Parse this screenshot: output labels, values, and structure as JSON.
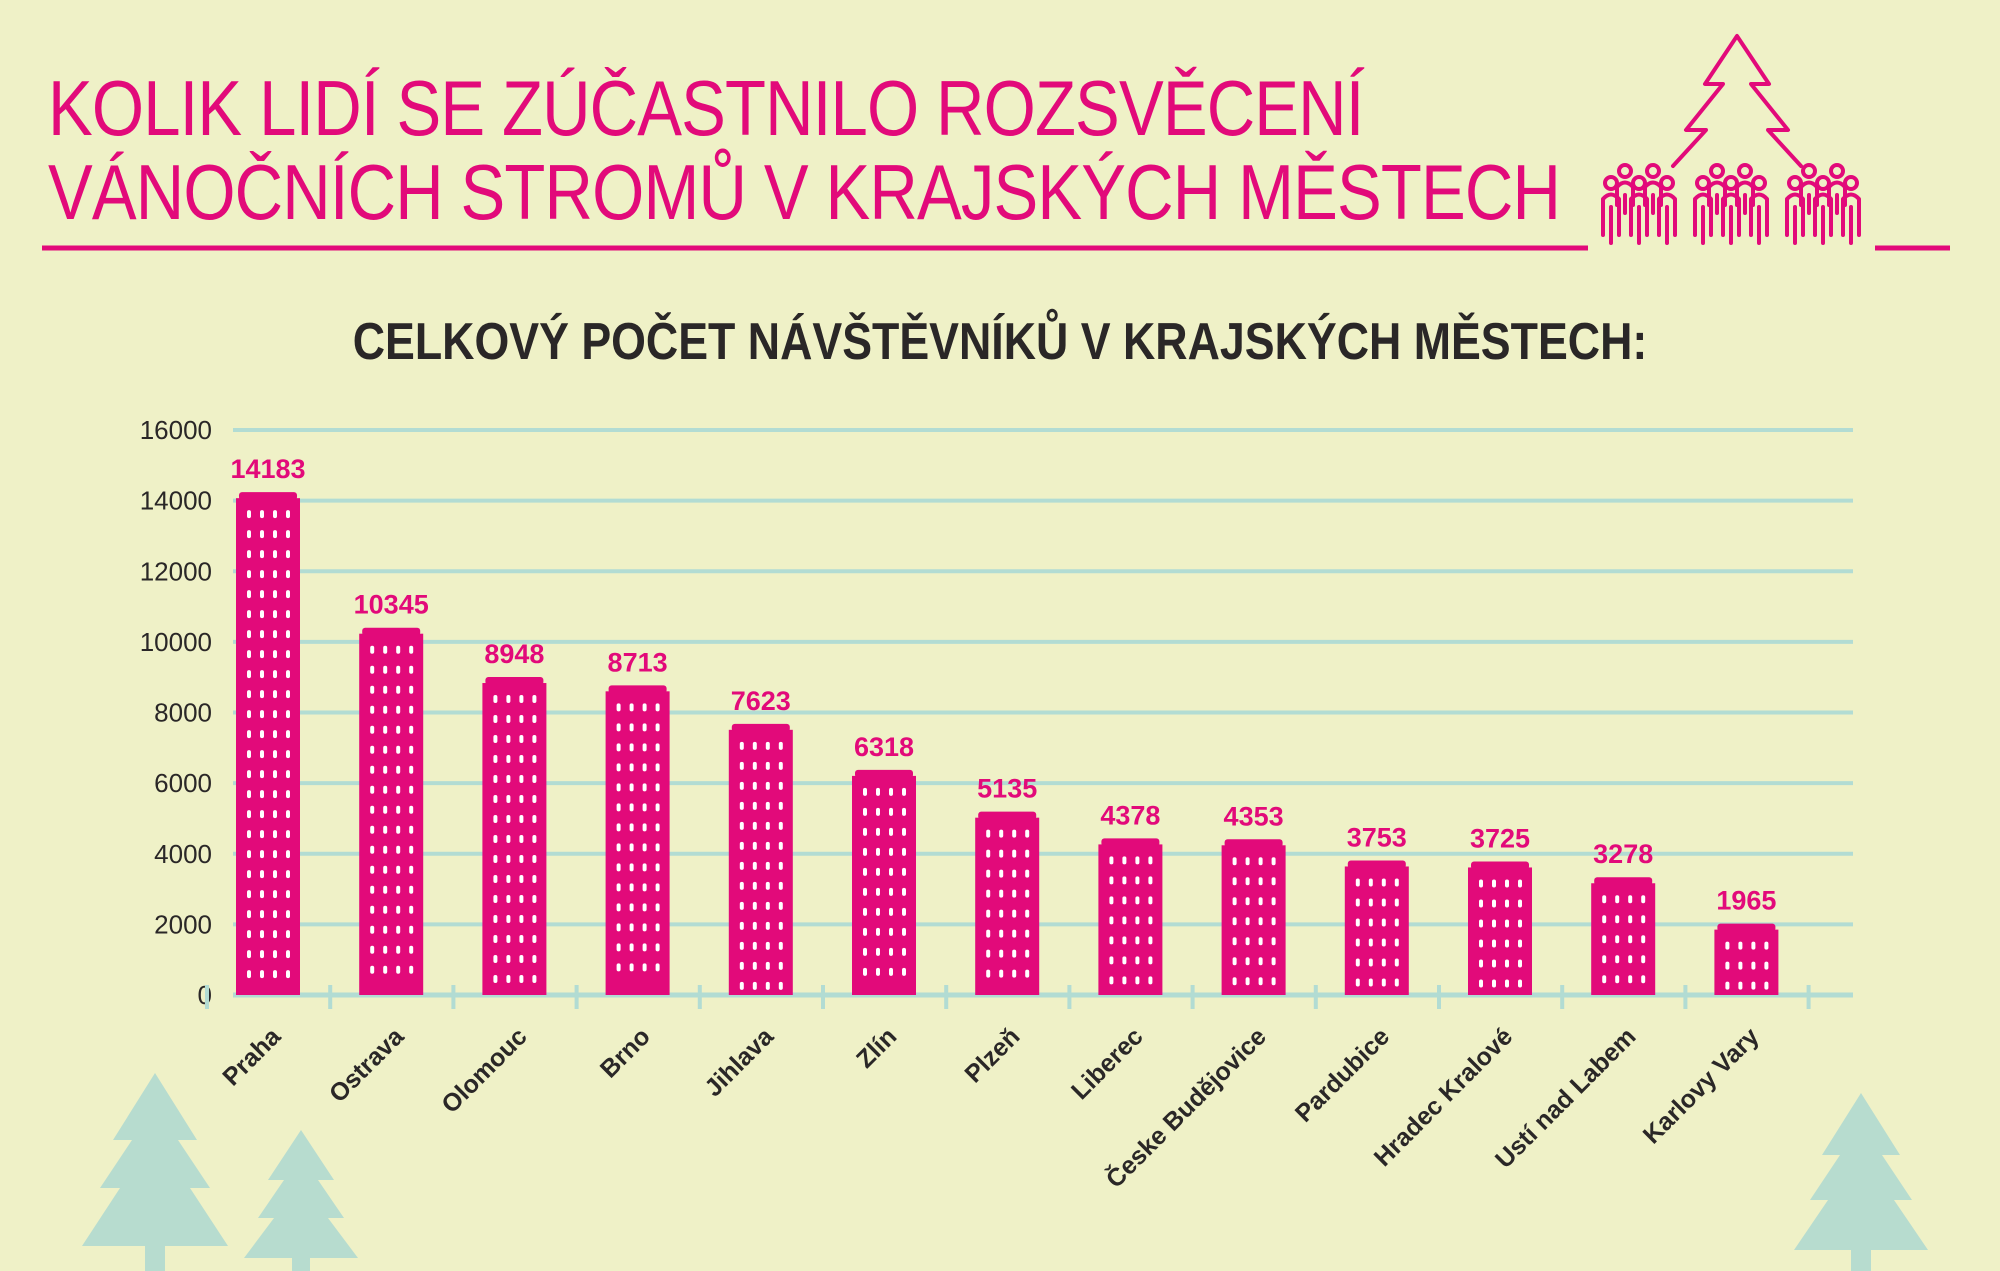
{
  "header": {
    "title_line1": "KOLIK LIDÍ SE ZÚČASTNILO ROZSVĚCENÍ",
    "title_line2": "VÁNOČNÍCH STROMŮ V KRAJSKÝCH MĚSTECH"
  },
  "colors": {
    "accent": "#e20a7a",
    "background": "#eff1c7",
    "grid": "#b2dcd3",
    "tree": "#b7dccf",
    "text": "#2a2727"
  },
  "chart_data": {
    "type": "bar",
    "title": "CELKOVÝ POČET NÁVŠTĚVNÍKŮ V KRAJSKÝCH MĚSTECH:",
    "categories": [
      "Praha",
      "Ostrava",
      "Olomouc",
      "Brno",
      "Jihlava",
      "Zlín",
      "Plzeň",
      "Liberec",
      "Česke Budějovice",
      "Pardubice",
      "Hradec Kralové",
      "Ustí nad Labem",
      "Karlovy Vary"
    ],
    "values": [
      14183,
      10345,
      8948,
      8713,
      7623,
      6318,
      5135,
      4378,
      4353,
      3753,
      3725,
      3278,
      1965
    ],
    "data_labels": [
      "14183",
      "10345",
      "8948",
      "8713",
      "7623",
      "6318",
      "5135",
      "4378",
      "4353",
      "3753",
      "3725",
      "3278",
      "1965"
    ],
    "yticks": [
      "0",
      "2000",
      "4000",
      "6000",
      "8000",
      "10000",
      "12000",
      "14000",
      "16000"
    ],
    "ylim": [
      0,
      16000
    ],
    "grid": true,
    "xlabel": "",
    "ylabel": ""
  }
}
